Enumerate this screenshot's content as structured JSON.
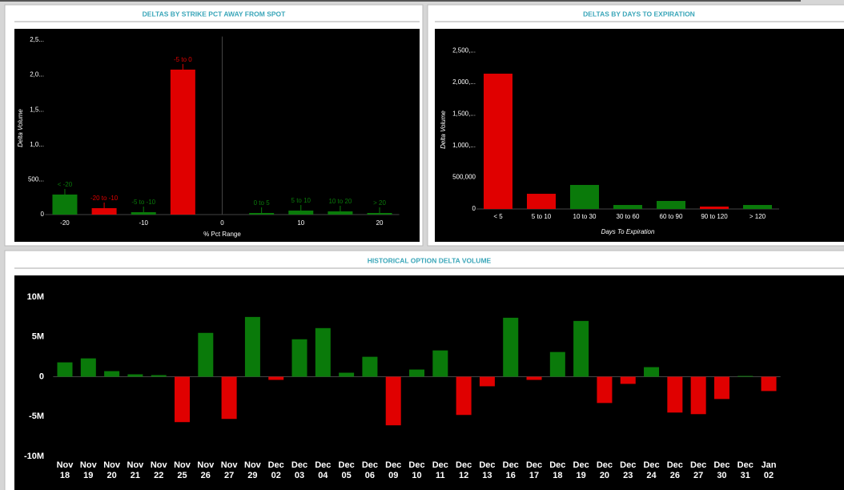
{
  "chart_data": [
    {
      "type": "bar",
      "title": "DELTAS BY STRIKE PCT AWAY FROM SPOT",
      "x": [
        -20,
        -15,
        -10,
        -5,
        5,
        10,
        15,
        20
      ],
      "labels": [
        "< -20",
        "-20 to -10",
        "-5 to -10",
        "-5 to 0",
        "0 to 5",
        "5 to 10",
        "10 to 20",
        "> 20"
      ],
      "values": [
        287000,
        92000,
        34000,
        2076000,
        23000,
        57000,
        46000,
        23000
      ],
      "colors": [
        "#0a7a0a",
        "#e00000",
        "#0a7a0a",
        "#e00000",
        "#0a7a0a",
        "#0a7a0a",
        "#0a7a0a",
        "#0a7a0a"
      ],
      "xlabel": "% Pct Range",
      "ylabel": "Delta Volume",
      "xlim": [
        -22.5,
        22.5
      ],
      "xticks": [
        -20,
        -10,
        0,
        10,
        20
      ],
      "ylim": [
        0,
        2550000
      ],
      "yticks": [
        0,
        {
          "value": 500000,
          "label": "500..."
        },
        {
          "value": 1000000,
          "label": "1,0..."
        },
        {
          "value": 1500000,
          "label": "1,5..."
        },
        {
          "value": 2000000,
          "label": "2,0..."
        },
        {
          "value": 2500000,
          "label": "2,5..."
        }
      ]
    },
    {
      "type": "bar",
      "title": "DELTAS BY DAYS TO EXPIRATION",
      "categories": [
        "< 5",
        "5 to 10",
        "10 to 30",
        "30 to 60",
        "60 to 90",
        "90 to 120",
        "> 120"
      ],
      "values": [
        2139000,
        240000,
        380000,
        63000,
        127000,
        38000,
        63000
      ],
      "colors": [
        "#e00000",
        "#e00000",
        "#0a7a0a",
        "#0a7a0a",
        "#0a7a0a",
        "#e00000",
        "#0a7a0a"
      ],
      "xlabel": "Days To Expiration",
      "ylabel": "Delta Volume",
      "ylim": [
        0,
        2600000
      ],
      "yticks": [
        0,
        {
          "value": 500000,
          "label": "500,000"
        },
        {
          "value": 1000000,
          "label": "1,000,..."
        },
        {
          "value": 1500000,
          "label": "1,500,..."
        },
        {
          "value": 2000000,
          "label": "2,000,..."
        },
        {
          "value": 2500000,
          "label": "2,500,..."
        }
      ]
    },
    {
      "type": "bar",
      "title": "HISTORICAL OPTION DELTA VOLUME",
      "categories": [
        "Nov 18",
        "Nov 19",
        "Nov 20",
        "Nov 21",
        "Nov 22",
        "Nov 25",
        "Nov 26",
        "Nov 27",
        "Nov 29",
        "Dec 02",
        "Dec 03",
        "Dec 04",
        "Dec 05",
        "Dec 06",
        "Dec 09",
        "Dec 10",
        "Dec 11",
        "Dec 12",
        "Dec 13",
        "Dec 16",
        "Dec 17",
        "Dec 18",
        "Dec 19",
        "Dec 20",
        "Dec 23",
        "Dec 24",
        "Dec 26",
        "Dec 27",
        "Dec 30",
        "Dec 31",
        "Jan 02"
      ],
      "values": [
        1800000,
        2300000,
        700000,
        300000,
        200000,
        -5700000,
        5500000,
        -5300000,
        7500000,
        -400000,
        4700000,
        6100000,
        500000,
        2500000,
        -6100000,
        900000,
        3300000,
        -4800000,
        -1200000,
        7400000,
        -400000,
        3100000,
        7000000,
        -3300000,
        -900000,
        1200000,
        -4500000,
        -4700000,
        -2800000,
        100000,
        -1800000
      ],
      "positive_color": "#0a7a0a",
      "negative_color": "#e00000",
      "ylim": [
        -10000000,
        10000000
      ],
      "yticks": [
        {
          "value": -10000000,
          "label": "-10M"
        },
        {
          "value": -5000000,
          "label": "-5M"
        },
        0,
        {
          "value": 5000000,
          "label": "5M"
        },
        {
          "value": 10000000,
          "label": "10M"
        }
      ]
    }
  ]
}
